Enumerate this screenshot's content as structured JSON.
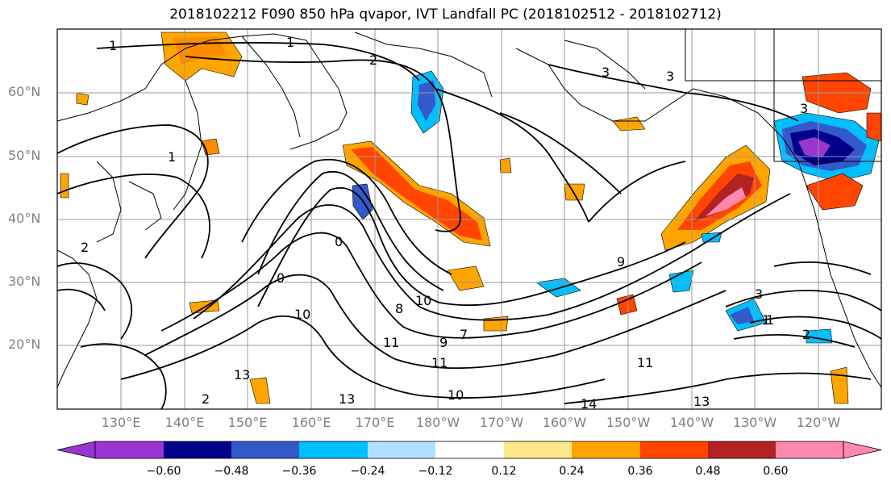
{
  "title": "2018102212 F090 850 hPa qvapor, IVT Landfall PC (2018102512 - 2018102712)",
  "lat_labels": [
    "60°N",
    "50°N",
    "40°N",
    "30°N",
    "20°N"
  ],
  "lon_labels": [
    "130°E",
    "140°E",
    "150°E",
    "160°E",
    "170°E",
    "180°W",
    "170°W",
    "160°W",
    "150°W",
    "140°W",
    "130°W",
    "120°W"
  ],
  "contour_labels": [
    "1",
    "2",
    "1",
    "3",
    "3",
    "3",
    "1",
    "2",
    "2",
    "1",
    "0",
    "0",
    "10",
    "11",
    "9",
    "8",
    "7",
    "10",
    "11",
    "13",
    "13",
    "10",
    "14",
    "13",
    "11",
    "9",
    "3",
    "1",
    "2"
  ],
  "colorbar": {
    "ticks": [
      "−0.60",
      "−0.48",
      "−0.36",
      "−0.24",
      "−0.12",
      "0.12",
      "0.24",
      "0.36",
      "0.48",
      "0.60"
    ],
    "colors": [
      "#9a35d1",
      "#00008b",
      "#3459c9",
      "#00bfff",
      "#b0e0ff",
      "#ffffff",
      "#ffe88a",
      "#ffa500",
      "#ff4500",
      "#b22222",
      "#ff88b0"
    ]
  }
}
